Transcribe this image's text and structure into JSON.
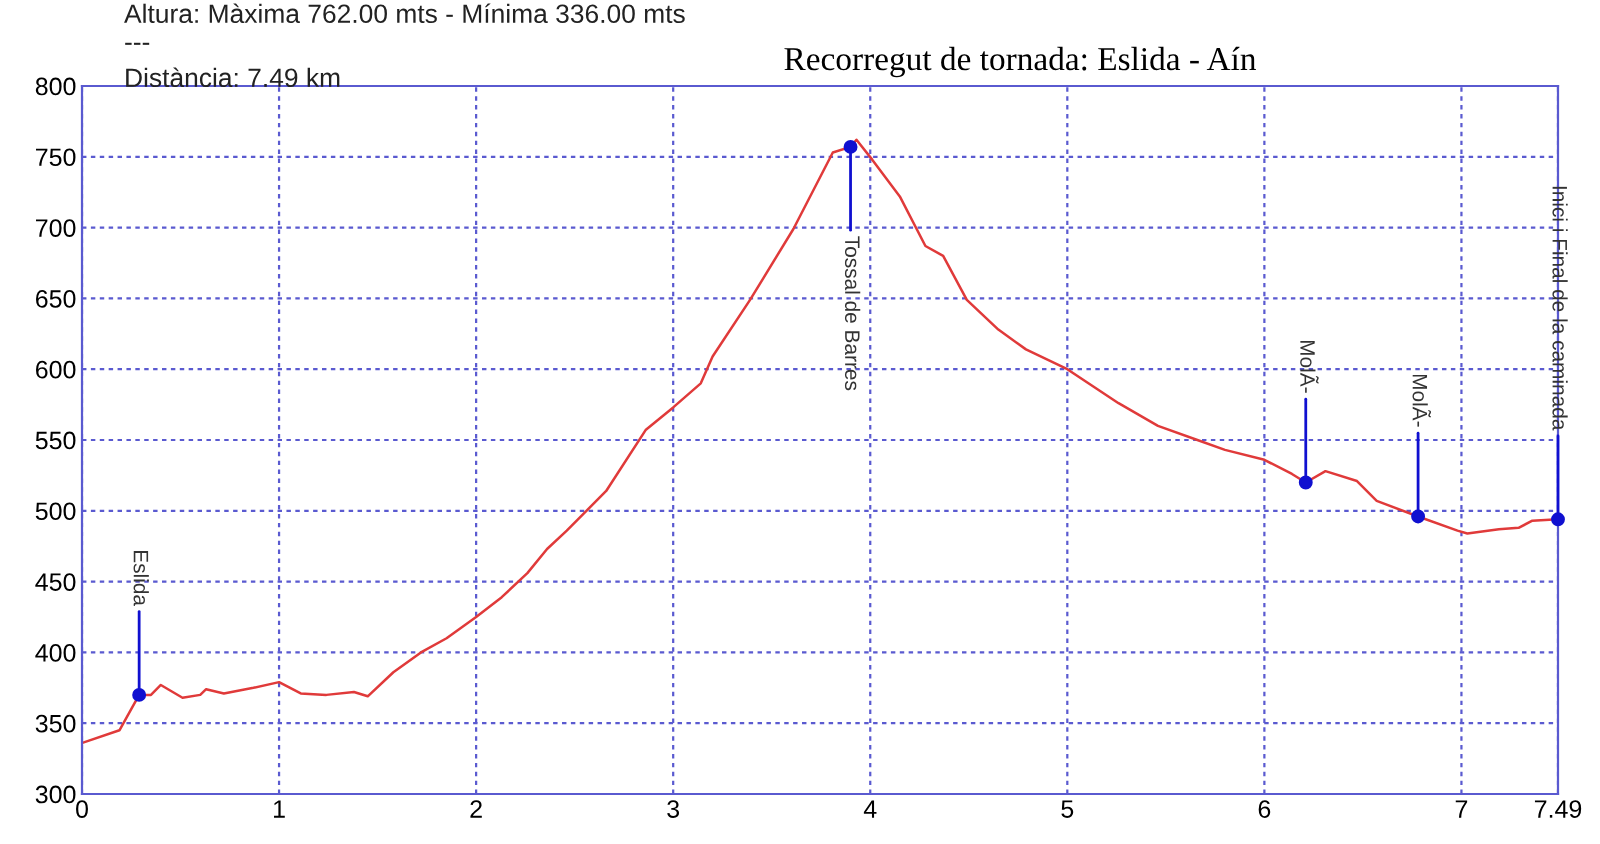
{
  "chart_data": {
    "type": "line",
    "title": "Recorregut de tornada: Eslida - Aín",
    "annotations": [
      "Altura: Màxima 762.00 mts - Mínima 336.00 mts",
      "---",
      "Distància: 7.49 km",
      {
        "text": "Eslida",
        "x": 0.29,
        "y": 370
      },
      {
        "text": "Tossal de Barres",
        "x": 3.9,
        "y": 757
      },
      {
        "text": "MolÃ-",
        "x": 6.21,
        "y": 520
      },
      {
        "text": "MolÃ-",
        "x": 6.78,
        "y": 496
      },
      {
        "text": "Inici i Final de la caminada",
        "x": 7.49,
        "y": 494
      }
    ],
    "series": [
      {
        "color": "#e03a3a",
        "x": [
          0,
          0.19,
          0.29,
          0.35,
          0.4,
          0.51,
          0.6,
          0.63,
          0.72,
          0.87,
          1.0,
          1.11,
          1.24,
          1.38,
          1.45,
          1.58,
          1.72,
          1.85,
          2.0,
          2.13,
          2.26,
          2.36,
          2.46,
          2.66,
          2.86,
          3.0,
          3.14,
          3.2,
          3.39,
          3.61,
          3.81,
          3.9,
          3.93,
          4.01,
          4.15,
          4.28,
          4.37,
          4.49,
          4.65,
          4.79,
          5.0,
          5.26,
          5.46,
          5.66,
          5.8,
          6.0,
          6.14,
          6.21,
          6.31,
          6.47,
          6.57,
          6.78,
          6.98,
          7.03,
          7.19,
          7.29,
          7.36,
          7.49
        ],
        "values": [
          336,
          345,
          370,
          370,
          377,
          368,
          370,
          374,
          371,
          375,
          379,
          371,
          370,
          372,
          369,
          386,
          400,
          410,
          425,
          439,
          456,
          473,
          486,
          514,
          557,
          573,
          590,
          609,
          649,
          699,
          753,
          757,
          762,
          748,
          722,
          687,
          680,
          649,
          628,
          614,
          600,
          576,
          560,
          550,
          543,
          536,
          526,
          520,
          528,
          521,
          507,
          496,
          486,
          484,
          487,
          488,
          493,
          494
        ]
      }
    ],
    "xlim": [
      0,
      7.49
    ],
    "xticks": [
      0,
      1,
      2,
      3,
      4,
      5,
      6,
      7,
      7.49
    ],
    "ylim": [
      300,
      800
    ],
    "yticks": [
      300,
      350,
      400,
      450,
      500,
      550,
      600,
      650,
      700,
      750,
      800
    ],
    "grid": true,
    "line_style": "solid",
    "marker": "none"
  }
}
